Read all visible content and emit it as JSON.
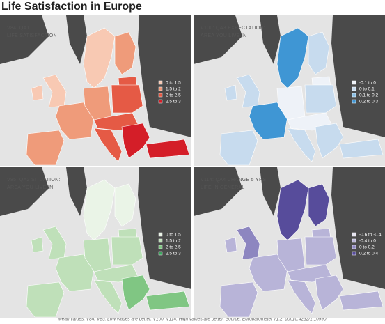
{
  "title": "Life Satisfaction in Europe",
  "panels": [
    {
      "label": [
        "V84: QA1",
        "LIFE SATISFACTION"
      ],
      "legend": [
        {
          "label": "0 to 1.5",
          "color": "#f8c9b3"
        },
        {
          "label": "1.5 to 2",
          "color": "#ef9b7a"
        },
        {
          "label": "2 to 2.5",
          "color": "#e55a45"
        },
        {
          "label": "2.5 to 3",
          "color": "#d41e28"
        }
      ]
    },
    {
      "label": [
        "V100: QA3 EXPECTATION:",
        "AREA YOU LIVE IN"
      ],
      "legend": [
        {
          "label": "-0.1 to 0",
          "color": "#eef2f8"
        },
        {
          "label": "0 to 0.1",
          "color": "#c7dbee"
        },
        {
          "label": "0.1 to 0.2",
          "color": "#88bde3"
        },
        {
          "label": "0.2 to 0.3",
          "color": "#3f96d4"
        }
      ]
    },
    {
      "label": [
        "V85: QA2 SITUATION:",
        "AREA YOU LIVE IN"
      ],
      "legend": [
        {
          "label": "0 to 1.5",
          "color": "#eaf4e7"
        },
        {
          "label": "1.5 to 2",
          "color": "#bfe0b9"
        },
        {
          "label": "2 to 2.5",
          "color": "#80c683"
        },
        {
          "label": "2.5 to 3",
          "color": "#3da55f"
        }
      ]
    },
    {
      "label": [
        "V114: QA4 CHANGE 5 YRS:",
        "LIFE IN GENERAL"
      ],
      "legend": [
        {
          "label": "-0.6 to -0.4",
          "color": "#e6e4f1"
        },
        {
          "label": "-0.4 to 0",
          "color": "#b8b4d8"
        },
        {
          "label": "0 to 0.2",
          "color": "#8d86c0"
        },
        {
          "label": "0.2 to 0.4",
          "color": "#574c9b"
        }
      ]
    }
  ],
  "footnote": "Mean values. V84, V85: Low values are better. V100, V114: High values are better. Source: Eurobarometer 71.2, doi:10.4232/1.10990"
}
